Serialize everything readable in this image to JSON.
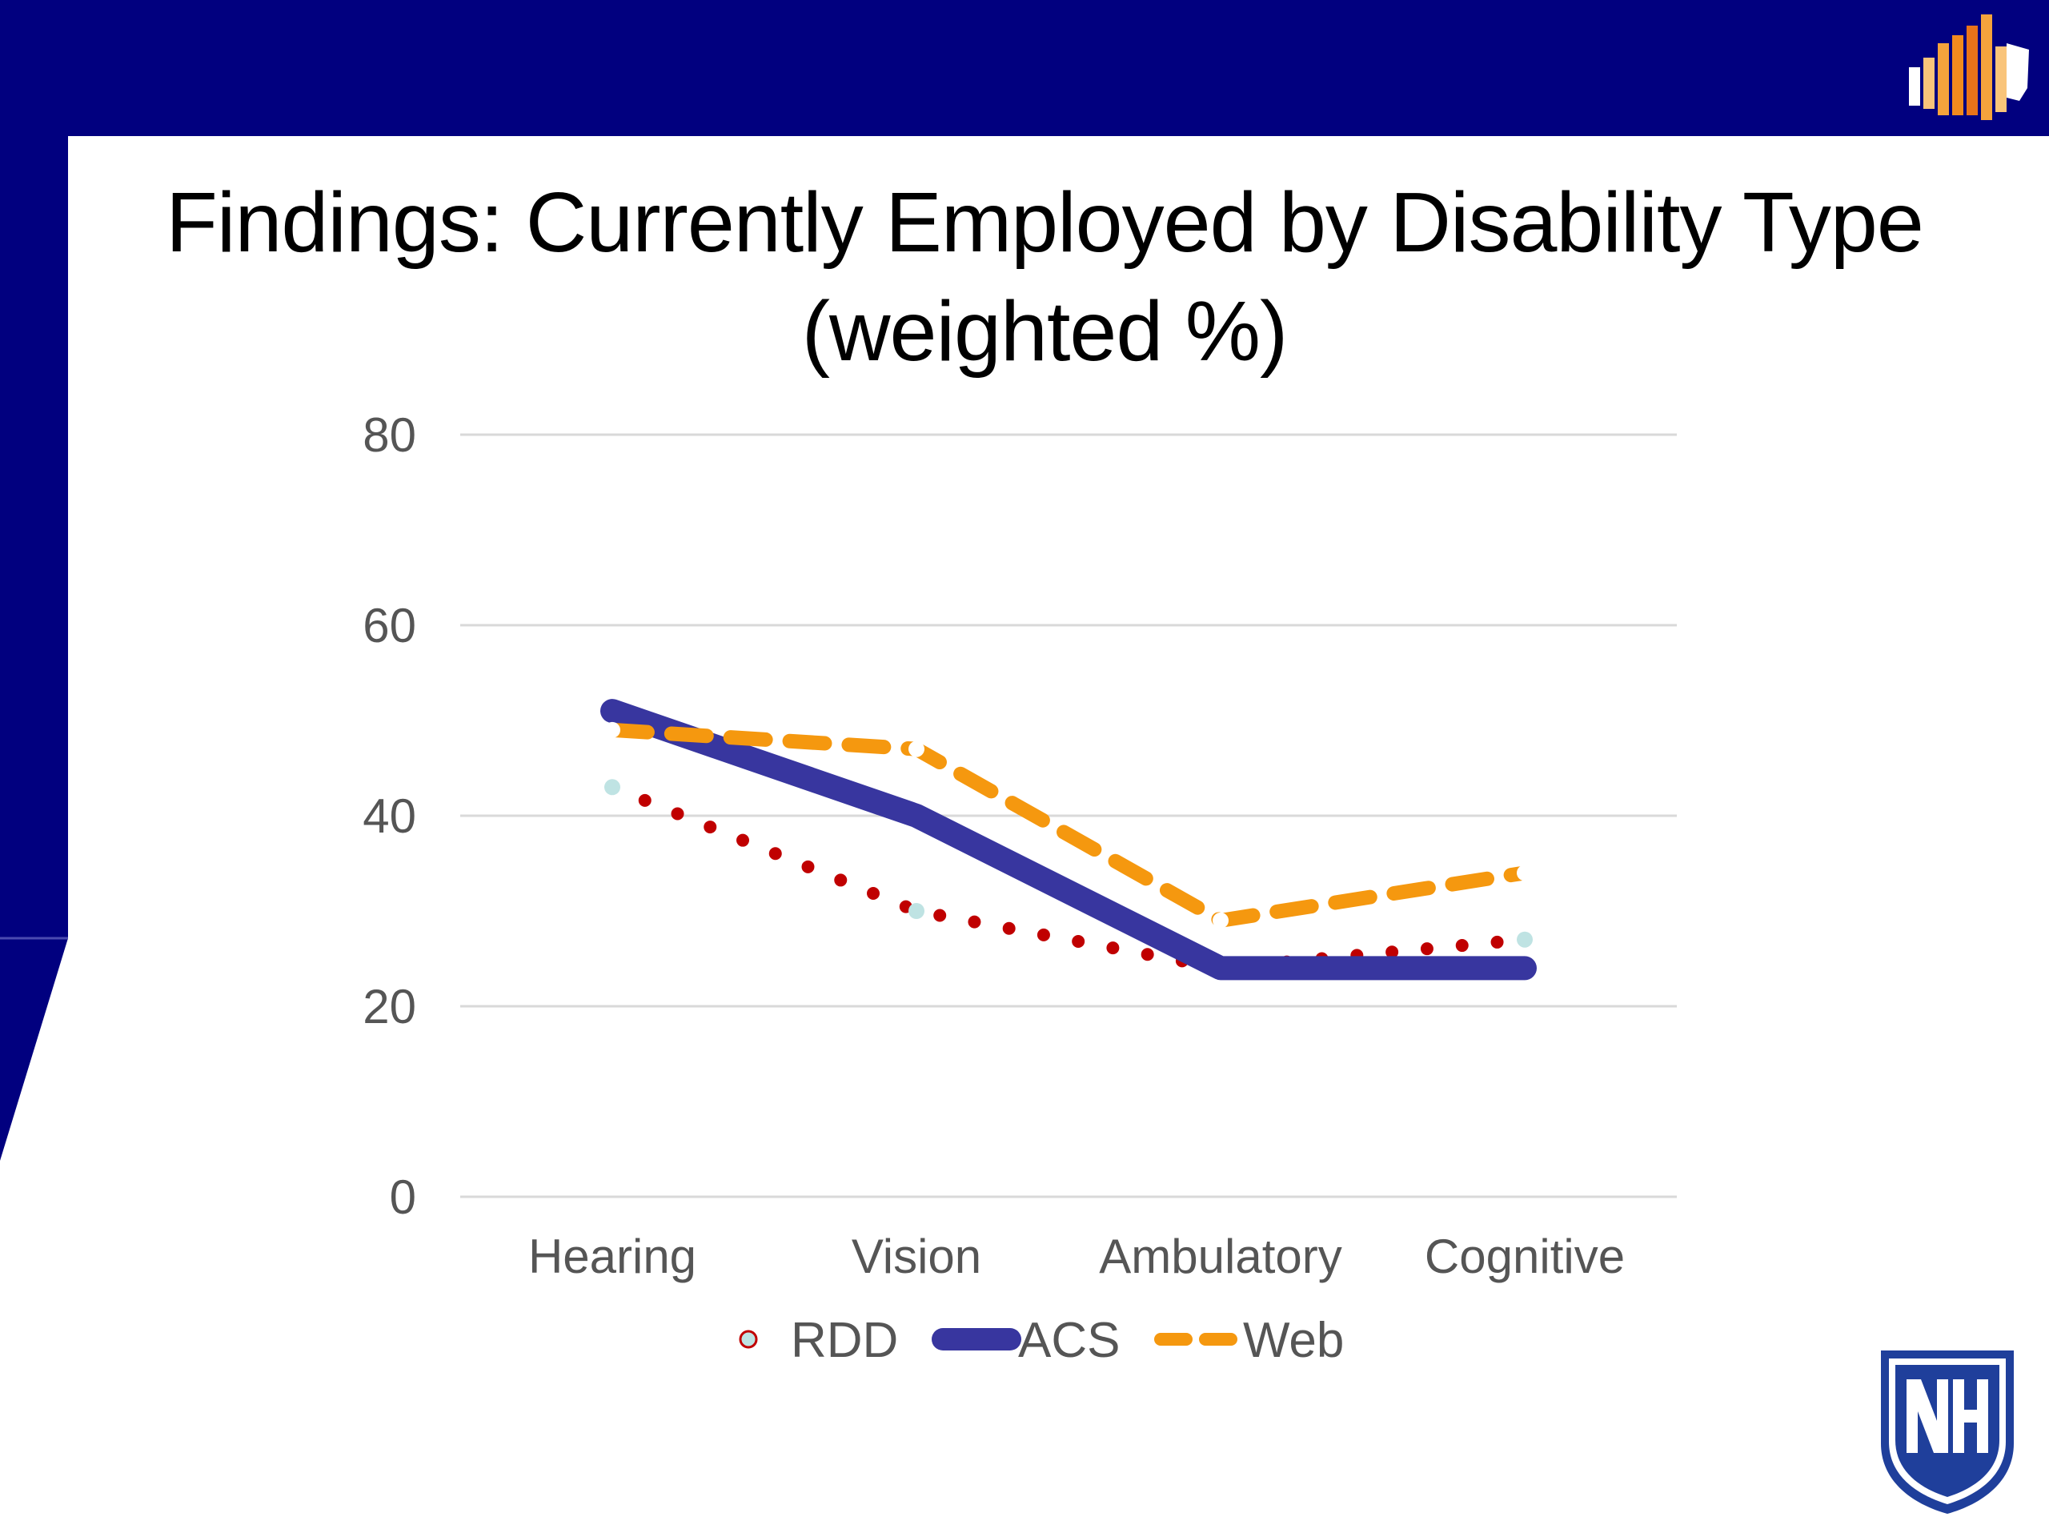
{
  "slide": {
    "title_line1": "Findings: Currently Employed by Disability Type",
    "title_line2": "(weighted %)"
  },
  "colors": {
    "header_navy": "#01007F",
    "rdd": "#C00000",
    "rdd_marker": "#BFE3E3",
    "acs": "#38369F",
    "web": "#F5980F",
    "gridline": "#D9D9D9",
    "unh_blue": "#1F3F9B"
  },
  "icons": {
    "top_right": "bar-chart-map-logo-icon",
    "bottom_right": "unh-shield-logo-icon"
  },
  "chart_data": {
    "type": "line",
    "title": "Findings: Currently Employed by Disability Type (weighted %)",
    "categories": [
      "Hearing",
      "Vision",
      "Ambulatory",
      "Cognitive"
    ],
    "series": [
      {
        "name": "RDD",
        "values": [
          43,
          30,
          24,
          27
        ],
        "style": "dotted"
      },
      {
        "name": "ACS",
        "values": [
          51,
          40,
          24,
          24
        ],
        "style": "solid"
      },
      {
        "name": "Web",
        "values": [
          49,
          47,
          29,
          34
        ],
        "style": "dashed"
      }
    ],
    "y_ticks": [
      0,
      20,
      40,
      60,
      80
    ],
    "ylim": [
      0,
      80
    ],
    "grid": true,
    "legend": "bottom"
  }
}
